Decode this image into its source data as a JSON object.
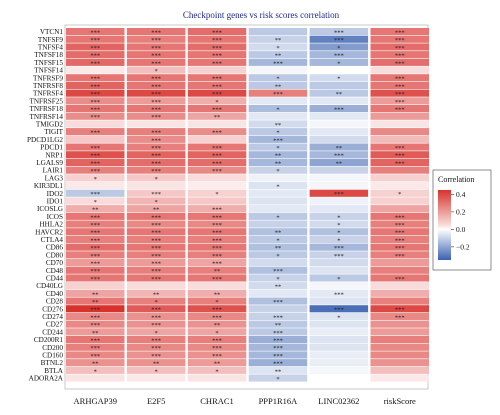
{
  "chart_data": {
    "type": "heatmap",
    "title": "Checkpoint genes vs risk scores correlation",
    "columns": [
      "ARHGAP39",
      "E2F5",
      "CHRAC1",
      "PPP1R16A",
      "LINC02362",
      "riskScore"
    ],
    "rows": [
      "VTCN1",
      "TNFSF9",
      "TNFSF4",
      "TNFSF18",
      "TNFSF15",
      "TNFSF14",
      "TNFRSF9",
      "TNFRSF8",
      "TNFRSF4",
      "TNFRSF25",
      "TNFRSF18",
      "TNFRSF14",
      "TMIGD2",
      "TIGIT",
      "PDCD1LG2",
      "PDCD1",
      "NRP1",
      "LGALS9",
      "LAIR1",
      "LAG3",
      "KIR3DL1",
      "IDO2",
      "IDO1",
      "ICOSLG",
      "ICOS",
      "HHLA2",
      "HAVCR2",
      "CTLA4",
      "CD86",
      "CD80",
      "CD70",
      "CD48",
      "CD44",
      "CD40LG",
      "CD40",
      "CD28",
      "CD276",
      "CD274",
      "CD27",
      "CD244",
      "CD200R1",
      "CD200",
      "CD160",
      "BTNL2",
      "BTLA",
      "ADORA2A"
    ],
    "values": [
      [
        0.3,
        0.3,
        0.32,
        -0.12,
        -0.12,
        0.3
      ],
      [
        0.3,
        0.28,
        0.3,
        -0.1,
        -0.28,
        0.3
      ],
      [
        0.34,
        0.3,
        0.32,
        -0.08,
        -0.22,
        0.32
      ],
      [
        0.32,
        0.3,
        0.3,
        -0.12,
        -0.16,
        0.3
      ],
      [
        0.33,
        0.3,
        0.3,
        -0.16,
        -0.16,
        0.32
      ],
      [
        0.05,
        0.14,
        0.1,
        -0.02,
        0.0,
        0.08
      ],
      [
        0.3,
        0.3,
        0.3,
        -0.12,
        -0.08,
        0.3
      ],
      [
        0.34,
        0.3,
        0.3,
        -0.12,
        -0.12,
        0.3
      ],
      [
        0.4,
        0.4,
        0.4,
        0.28,
        -0.12,
        0.38
      ],
      [
        0.25,
        0.22,
        0.18,
        -0.05,
        -0.05,
        0.22
      ],
      [
        0.3,
        0.3,
        0.3,
        -0.15,
        -0.18,
        0.3
      ],
      [
        0.25,
        0.25,
        0.2,
        -0.05,
        -0.05,
        0.22
      ],
      [
        0.08,
        0.06,
        0.06,
        -0.08,
        -0.02,
        0.06
      ],
      [
        0.28,
        0.28,
        0.25,
        -0.12,
        -0.05,
        0.26
      ],
      [
        0.12,
        0.25,
        0.1,
        -0.16,
        -0.08,
        0.15
      ],
      [
        0.3,
        0.28,
        0.3,
        -0.12,
        -0.18,
        0.3
      ],
      [
        0.38,
        0.34,
        0.34,
        -0.16,
        -0.16,
        0.36
      ],
      [
        0.34,
        0.32,
        0.32,
        -0.16,
        -0.2,
        0.34
      ],
      [
        0.28,
        0.28,
        0.26,
        -0.1,
        -0.1,
        0.28
      ],
      [
        0.1,
        0.12,
        0.08,
        -0.03,
        -0.02,
        0.1
      ],
      [
        0.05,
        0.06,
        0.04,
        -0.06,
        -0.02,
        0.05
      ],
      [
        -0.12,
        0.12,
        0.1,
        -0.05,
        0.4,
        0.1
      ],
      [
        0.08,
        0.16,
        0.12,
        -0.06,
        -0.03,
        0.1
      ],
      [
        0.18,
        0.2,
        0.18,
        -0.05,
        -0.05,
        0.2
      ],
      [
        0.3,
        0.3,
        0.3,
        -0.12,
        -0.1,
        0.3
      ],
      [
        0.28,
        0.26,
        0.26,
        -0.1,
        -0.08,
        0.28
      ],
      [
        0.3,
        0.3,
        0.3,
        -0.14,
        -0.14,
        0.3
      ],
      [
        0.28,
        0.28,
        0.28,
        -0.12,
        -0.1,
        0.28
      ],
      [
        0.32,
        0.3,
        0.3,
        -0.14,
        -0.16,
        0.3
      ],
      [
        0.28,
        0.28,
        0.28,
        -0.12,
        -0.1,
        0.28
      ],
      [
        0.22,
        0.22,
        0.2,
        -0.08,
        -0.08,
        0.22
      ],
      [
        0.3,
        0.28,
        0.28,
        -0.14,
        -0.06,
        0.28
      ],
      [
        0.3,
        0.3,
        0.3,
        -0.1,
        -0.12,
        0.3
      ],
      [
        0.1,
        0.08,
        0.08,
        -0.08,
        -0.02,
        0.08
      ],
      [
        0.2,
        0.16,
        0.18,
        -0.05,
        -0.05,
        0.18
      ],
      [
        0.3,
        0.28,
        0.28,
        -0.14,
        -0.06,
        0.28
      ],
      [
        0.45,
        0.36,
        0.38,
        -0.1,
        -0.32,
        0.4
      ],
      [
        0.26,
        0.24,
        0.26,
        -0.1,
        -0.06,
        0.26
      ],
      [
        0.26,
        0.24,
        0.24,
        -0.12,
        -0.06,
        0.24
      ],
      [
        0.22,
        0.2,
        0.2,
        -0.12,
        -0.04,
        0.22
      ],
      [
        0.3,
        0.28,
        0.28,
        -0.18,
        -0.06,
        0.28
      ],
      [
        0.28,
        0.26,
        0.26,
        -0.16,
        -0.06,
        0.26
      ],
      [
        0.26,
        0.24,
        0.24,
        -0.16,
        -0.04,
        0.26
      ],
      [
        0.24,
        0.24,
        0.22,
        -0.18,
        -0.04,
        0.24
      ],
      [
        0.14,
        0.14,
        0.14,
        -0.06,
        -0.02,
        0.14
      ],
      [
        0.06,
        0.05,
        0.06,
        -0.1,
        0.0,
        0.05
      ]
    ],
    "significance": [
      [
        "***",
        "***",
        "***",
        "",
        "***",
        "***"
      ],
      [
        "***",
        "***",
        "***",
        "**",
        "***",
        "***"
      ],
      [
        "***",
        "***",
        "***",
        "*",
        "*",
        "***"
      ],
      [
        "***",
        "***",
        "***",
        "**",
        "***",
        "***"
      ],
      [
        "***",
        "***",
        "***",
        "***",
        "*",
        "***"
      ],
      [
        "",
        "*",
        "",
        "",
        "",
        ""
      ],
      [
        "***",
        "***",
        "***",
        "*",
        "*",
        "***"
      ],
      [
        "***",
        "***",
        "***",
        "**",
        "",
        "***"
      ],
      [
        "***",
        "***",
        "***",
        "***",
        "**",
        "***"
      ],
      [
        "***",
        "***",
        "*",
        "",
        "",
        "***"
      ],
      [
        "***",
        "***",
        "***",
        "*",
        "***",
        "***"
      ],
      [
        "***",
        "***",
        "**",
        "",
        "",
        ""
      ],
      [
        "",
        "",
        "",
        "**",
        "",
        ""
      ],
      [
        "***",
        "***",
        "***",
        "*",
        "",
        ""
      ],
      [
        "",
        "***",
        "",
        "***",
        "",
        ""
      ],
      [
        "***",
        "***",
        "***",
        "*",
        "**",
        "***"
      ],
      [
        "***",
        "***",
        "***",
        "**",
        "***",
        "***"
      ],
      [
        "***",
        "***",
        "***",
        "**",
        "**",
        "***"
      ],
      [
        "***",
        "***",
        "***",
        "*",
        "",
        ""
      ],
      [
        "*",
        "*",
        "",
        "",
        "",
        ""
      ],
      [
        "",
        "",
        "",
        "*",
        "",
        ""
      ],
      [
        "***",
        "***",
        "*",
        "",
        "***",
        "*"
      ],
      [
        "*",
        "*",
        "",
        "",
        "",
        ""
      ],
      [
        "**",
        "**",
        "***",
        "",
        "",
        ""
      ],
      [
        "***",
        "***",
        "***",
        "*",
        "*",
        "***"
      ],
      [
        "***",
        "***",
        "***",
        "",
        "*",
        "***"
      ],
      [
        "***",
        "***",
        "***",
        "**",
        "*",
        "***"
      ],
      [
        "***",
        "***",
        "***",
        "*",
        "*",
        "***"
      ],
      [
        "***",
        "***",
        "***",
        "**",
        "***",
        "***"
      ],
      [
        "***",
        "***",
        "***",
        "*",
        "***",
        "***"
      ],
      [
        "***",
        "***",
        "***",
        "",
        "",
        ""
      ],
      [
        "***",
        "***",
        "**",
        "***",
        "",
        ""
      ],
      [
        "***",
        "***",
        "***",
        "*",
        "*",
        "***"
      ],
      [
        "",
        "",
        "",
        "**",
        "",
        ""
      ],
      [
        "**",
        "**",
        "**",
        "",
        "***",
        ""
      ],
      [
        "**",
        "*",
        "*",
        "***",
        "",
        ""
      ],
      [
        "***",
        "***",
        "***",
        "",
        "***",
        "***"
      ],
      [
        "***",
        "***",
        "***",
        "***",
        "*",
        "***"
      ],
      [
        "***",
        "***",
        "**",
        "**",
        "",
        ""
      ],
      [
        "**",
        "*",
        "*",
        "***",
        "",
        ""
      ],
      [
        "***",
        "***",
        "***",
        "***",
        "",
        ""
      ],
      [
        "***",
        "***",
        "***",
        "***",
        "",
        ""
      ],
      [
        "***",
        "***",
        "***",
        "***",
        "",
        ""
      ],
      [
        "**",
        "**",
        "**",
        "***",
        "",
        ""
      ],
      [
        "*",
        "*",
        "*",
        "**",
        "",
        ""
      ],
      [
        "",
        "",
        "",
        "*",
        "",
        ""
      ]
    ],
    "legend_title": "Correlation",
    "legend_ticks": [
      0.4,
      0.2,
      0.0,
      -0.2
    ],
    "legend_ticks_text": [
      "0.4",
      "0.2",
      "0.0",
      "−0.2"
    ],
    "range": [
      -0.35,
      0.45
    ],
    "colors": {
      "low": "#3a62b0",
      "mid": "#ffffff",
      "high": "#d8322d"
    }
  }
}
